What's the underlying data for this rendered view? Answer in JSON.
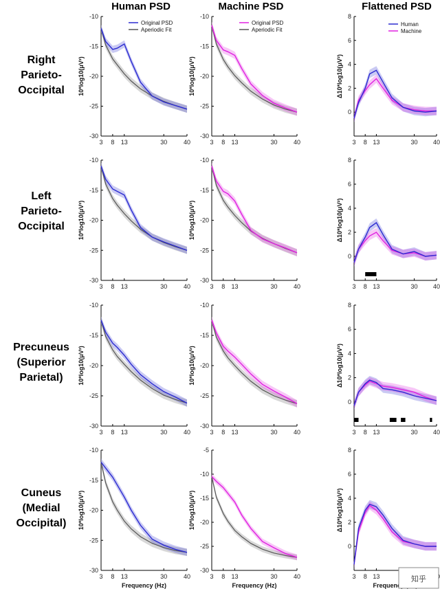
{
  "column_titles": [
    "Human PSD",
    "Machine PSD",
    "Flattened PSD"
  ],
  "row_labels": [
    [
      "Right",
      "Parieto-",
      "Occipital"
    ],
    [
      "Left",
      "Parieto-",
      "Occipital"
    ],
    [
      "Precuneus",
      "(Superior",
      "Parietal)"
    ],
    [
      "Cuneus",
      "(Medial",
      "Occipital)"
    ]
  ],
  "ylabel_psd": "10*log10(μV²)",
  "ylabel_flat": "Δ10*log10(μV²)",
  "xlabel": "Frequency (Hz)",
  "x_ticks": [
    "3",
    "8",
    "13",
    "30",
    "40"
  ],
  "legend_psd_human": [
    "Original PSD",
    "Aperiodic Fit"
  ],
  "legend_psd_machine": [
    "Original PSD",
    "Aperiodic Fit"
  ],
  "legend_flat": [
    "Human",
    "Machine"
  ],
  "watermark": "知乎",
  "colors": {
    "human": "#2b2bd1",
    "machine": "#e020e0",
    "fit": "#555555",
    "band_fit": "#c8c8c8",
    "sig": "#000000"
  },
  "chart_data": [
    {
      "type": "line",
      "panel": "right-human",
      "ylim": [
        -30,
        -10
      ],
      "yticks": [
        -10,
        -15,
        -20,
        -25,
        -30
      ],
      "x": [
        3,
        5,
        8,
        10,
        13,
        16,
        20,
        25,
        30,
        35,
        40
      ],
      "series": [
        {
          "name": "Original PSD",
          "values": [
            -12,
            -14.2,
            -15.5,
            -15.3,
            -14.6,
            -17.5,
            -21,
            -23.3,
            -24.3,
            -24.9,
            -25.5
          ]
        },
        {
          "name": "Aperiodic Fit",
          "values": [
            -12,
            -14.8,
            -17.1,
            -18.1,
            -19.6,
            -20.8,
            -22.1,
            -23.3,
            -24.2,
            -24.9,
            -25.5
          ]
        }
      ]
    },
    {
      "type": "line",
      "panel": "right-machine",
      "ylim": [
        -30,
        -10
      ],
      "yticks": [
        -10,
        -15,
        -20,
        -25,
        -30
      ],
      "x": [
        3,
        5,
        8,
        10,
        13,
        16,
        20,
        25,
        30,
        35,
        40
      ],
      "series": [
        {
          "name": "Original PSD",
          "values": [
            -11.5,
            -14,
            -15.6,
            -15.9,
            -16.5,
            -18.7,
            -21.3,
            -23.2,
            -24.5,
            -25.3,
            -26
          ]
        },
        {
          "name": "Aperiodic Fit",
          "values": [
            -11.5,
            -14.6,
            -17.2,
            -18.4,
            -19.9,
            -21.1,
            -22.5,
            -23.8,
            -24.8,
            -25.5,
            -26
          ]
        }
      ]
    },
    {
      "type": "line",
      "panel": "right-flat",
      "ylim": [
        -2,
        8
      ],
      "yticks": [
        8,
        6,
        4,
        2,
        0
      ],
      "x": [
        3,
        5,
        8,
        10,
        13,
        16,
        20,
        25,
        30,
        35,
        40
      ],
      "series": [
        {
          "name": "Human",
          "values": [
            -0.5,
            0.8,
            2,
            3.2,
            3.5,
            2.5,
            1.2,
            0.4,
            0.1,
            0,
            0.1
          ]
        },
        {
          "name": "Machine",
          "values": [
            -0.5,
            1,
            1.8,
            2.3,
            2.8,
            2,
            1,
            0.4,
            0.2,
            0.1,
            0.1
          ]
        }
      ]
    },
    {
      "type": "line",
      "panel": "left-human",
      "ylim": [
        -30,
        -10
      ],
      "yticks": [
        -10,
        -15,
        -20,
        -25,
        -30
      ],
      "x": [
        3,
        5,
        8,
        10,
        13,
        16,
        20,
        25,
        30,
        35,
        40
      ],
      "series": [
        {
          "name": "Original PSD",
          "values": [
            -11,
            -13.2,
            -14.8,
            -15.2,
            -15.8,
            -18.3,
            -21.2,
            -22.8,
            -23.6,
            -24.3,
            -25
          ]
        },
        {
          "name": "Aperiodic Fit",
          "values": [
            -11,
            -14,
            -16.4,
            -17.5,
            -18.9,
            -20.1,
            -21.5,
            -22.8,
            -23.7,
            -24.4,
            -25
          ]
        }
      ]
    },
    {
      "type": "line",
      "panel": "left-machine",
      "ylim": [
        -30,
        -10
      ],
      "yticks": [
        -10,
        -15,
        -20,
        -25,
        -30
      ],
      "x": [
        3,
        5,
        8,
        10,
        13,
        16,
        20,
        25,
        30,
        35,
        40
      ],
      "series": [
        {
          "name": "Original PSD",
          "values": [
            -11,
            -13.5,
            -15.2,
            -15.6,
            -16.8,
            -19,
            -21.7,
            -23.1,
            -23.9,
            -24.6,
            -25.4
          ]
        },
        {
          "name": "Aperiodic Fit",
          "values": [
            -11,
            -14.2,
            -16.7,
            -17.8,
            -19.2,
            -20.4,
            -21.8,
            -23,
            -23.9,
            -24.7,
            -25.4
          ]
        }
      ]
    },
    {
      "type": "line",
      "panel": "left-flat",
      "ylim": [
        -2,
        8
      ],
      "yticks": [
        8,
        6,
        4,
        2,
        0
      ],
      "x": [
        3,
        5,
        8,
        10,
        13,
        16,
        20,
        25,
        30,
        35,
        40
      ],
      "series": [
        {
          "name": "Human",
          "values": [
            -0.5,
            0.6,
            1.6,
            2.4,
            2.8,
            1.8,
            0.6,
            0.2,
            0.4,
            0,
            0.1
          ]
        },
        {
          "name": "Machine",
          "values": [
            -0.5,
            0.6,
            1.3,
            1.7,
            2,
            1.3,
            0.5,
            0.2,
            0.3,
            0,
            0.1
          ]
        }
      ],
      "significance": [
        [
          8,
          13
        ]
      ]
    },
    {
      "type": "line",
      "panel": "precuneus-human",
      "ylim": [
        -30,
        -10
      ],
      "yticks": [
        -10,
        -15,
        -20,
        -25,
        -30
      ],
      "x": [
        3,
        5,
        8,
        10,
        13,
        16,
        20,
        25,
        30,
        35,
        40
      ],
      "series": [
        {
          "name": "Original PSD",
          "values": [
            -12.5,
            -14.5,
            -16.3,
            -17,
            -18.3,
            -19.8,
            -21.5,
            -23,
            -24.3,
            -25.2,
            -26.2
          ]
        },
        {
          "name": "Aperiodic Fit",
          "values": [
            -12.5,
            -15.2,
            -17.4,
            -18.5,
            -19.8,
            -21,
            -22.4,
            -23.8,
            -24.9,
            -25.6,
            -26.2
          ]
        }
      ]
    },
    {
      "type": "line",
      "panel": "precuneus-machine",
      "ylim": [
        -30,
        -10
      ],
      "yticks": [
        -10,
        -15,
        -20,
        -25,
        -30
      ],
      "x": [
        3,
        5,
        8,
        10,
        13,
        16,
        20,
        25,
        30,
        35,
        40
      ],
      "series": [
        {
          "name": "Original PSD",
          "values": [
            -12.5,
            -14.6,
            -16.8,
            -17.6,
            -18.6,
            -19.8,
            -21.4,
            -23.1,
            -24.2,
            -25.2,
            -26.3
          ]
        },
        {
          "name": "Aperiodic Fit",
          "values": [
            -12.5,
            -15.3,
            -17.6,
            -18.7,
            -20,
            -21.2,
            -22.6,
            -24,
            -25,
            -25.7,
            -26.3
          ]
        }
      ]
    },
    {
      "type": "line",
      "panel": "precuneus-flat",
      "ylim": [
        -2,
        8
      ],
      "yticks": [
        8,
        6,
        4,
        2,
        0
      ],
      "x": [
        3,
        5,
        8,
        10,
        13,
        16,
        20,
        25,
        30,
        35,
        40
      ],
      "series": [
        {
          "name": "Human",
          "values": [
            -0.3,
            0.8,
            1.5,
            1.8,
            1.6,
            1.1,
            1,
            0.8,
            0.5,
            0.3,
            0.1
          ]
        },
        {
          "name": "Machine",
          "values": [
            -0.3,
            0.8,
            1.4,
            1.7,
            1.5,
            1.3,
            1.2,
            1,
            0.8,
            0.4,
            0.1
          ]
        }
      ],
      "significance": [
        [
          3,
          5
        ],
        [
          19,
          22
        ],
        [
          24,
          26
        ],
        [
          37,
          38
        ]
      ]
    },
    {
      "type": "line",
      "panel": "cuneus-human",
      "ylim": [
        -30,
        -10
      ],
      "yticks": [
        -10,
        -15,
        -20,
        -25,
        -30
      ],
      "x": [
        3,
        5,
        8,
        10,
        13,
        16,
        20,
        25,
        30,
        35,
        40
      ],
      "series": [
        {
          "name": "Original PSD",
          "values": [
            -12,
            -13,
            -14.5,
            -15.8,
            -17.8,
            -20,
            -22.5,
            -24.8,
            -25.8,
            -26.5,
            -27
          ]
        },
        {
          "name": "Aperiodic Fit",
          "values": [
            -12,
            -15.5,
            -18.6,
            -20,
            -21.8,
            -23.1,
            -24.4,
            -25.5,
            -26.2,
            -26.7,
            -27
          ]
        }
      ]
    },
    {
      "type": "line",
      "panel": "cuneus-machine",
      "ylim": [
        -30,
        -5
      ],
      "yticks": [
        -5,
        -10,
        -15,
        -20,
        -25,
        -30
      ],
      "x": [
        3,
        5,
        8,
        10,
        13,
        16,
        20,
        25,
        30,
        35,
        40
      ],
      "series": [
        {
          "name": "Original PSD",
          "values": [
            -10.5,
            -11.5,
            -12.8,
            -14,
            -15.8,
            -18.5,
            -21.3,
            -24,
            -25.3,
            -26.5,
            -27.3
          ]
        },
        {
          "name": "Aperiodic Fit",
          "values": [
            -10.5,
            -14.8,
            -18.2,
            -19.8,
            -21.7,
            -23,
            -24.4,
            -25.6,
            -26.4,
            -26.9,
            -27.3
          ]
        }
      ]
    },
    {
      "type": "line",
      "panel": "cuneus-flat",
      "ylim": [
        -2,
        8
      ],
      "yticks": [
        8,
        6,
        4,
        2,
        0
      ],
      "x": [
        3,
        5,
        8,
        10,
        13,
        16,
        20,
        25,
        30,
        35,
        40
      ],
      "series": [
        {
          "name": "Human",
          "values": [
            -1.5,
            1.5,
            3,
            3.5,
            3.3,
            2.6,
            1.5,
            0.5,
            0.2,
            0,
            0
          ]
        },
        {
          "name": "Machine",
          "values": [
            -1.5,
            1.2,
            2.8,
            3.4,
            3,
            2.3,
            1.2,
            0.4,
            0.2,
            0,
            0
          ]
        }
      ]
    }
  ]
}
